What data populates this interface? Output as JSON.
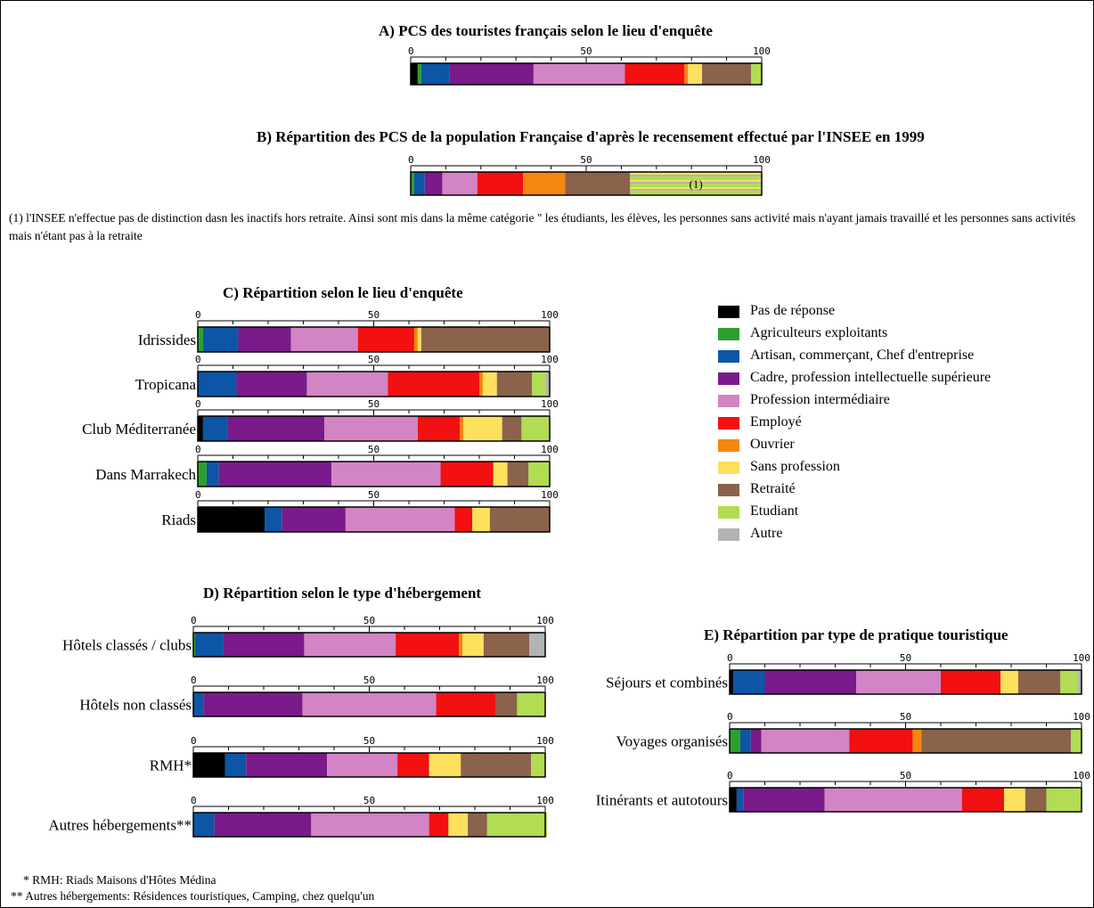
{
  "colors": {
    "pas_de_reponse": "#000000",
    "agriculteurs": "#2ca02c",
    "artisan": "#0d55a6",
    "cadre": "#7b1a8a",
    "prof_inter": "#d284c5",
    "employe": "#f21010",
    "ouvrier": "#f5860f",
    "sans_profession": "#fde05d",
    "retraite": "#8b634b",
    "etudiant": "#b1dc53",
    "autre": "#b3b3b3"
  },
  "legend": [
    {
      "key": "pas_de_reponse",
      "label": "Pas de réponse"
    },
    {
      "key": "agriculteurs",
      "label": "Agriculteurs exploitants"
    },
    {
      "key": "artisan",
      "label": "Artisan, commerçant, Chef d'entreprise"
    },
    {
      "key": "cadre",
      "label": "Cadre, profession intellectuelle supérieure"
    },
    {
      "key": "prof_inter",
      "label": "Profession intermédiaire"
    },
    {
      "key": "employe",
      "label": "Employé"
    },
    {
      "key": "ouvrier",
      "label": "Ouvrier"
    },
    {
      "key": "sans_profession",
      "label": "Sans profession"
    },
    {
      "key": "retraite",
      "label": "Retraité"
    },
    {
      "key": "etudiant",
      "label": "Etudiant"
    },
    {
      "key": "autre",
      "label": "Autre"
    }
  ],
  "note": "(1) l'INSEE n'effectue pas de distinction dasn les inactifs hors retraite. Ainsi sont mis dans la même catégorie \" les étudiants, les élèves, les personnes sans activité mais n'ayant jamais travaillé et les personnes sans activités mais n'étant pas à la retraite",
  "footnotes": [
    "* RMH: Riads Maisons d'Hôtes Médina",
    "** Autres hébergements: Résidences touristiques, Camping, chez quelqu'un"
  ],
  "chart_data": [
    {
      "id": "A",
      "type": "bar",
      "orientation": "horizontal",
      "stacked": true,
      "title": "A) PCS des touristes français selon le lieu d'enquête",
      "xlim": [
        0,
        100
      ],
      "ticks": [
        0,
        50,
        100
      ],
      "categories": [
        ""
      ],
      "series": [
        {
          "key": "pas_de_reponse",
          "values": [
            2
          ]
        },
        {
          "key": "agriculteurs",
          "values": [
            1
          ]
        },
        {
          "key": "artisan",
          "values": [
            8
          ]
        },
        {
          "key": "cadre",
          "values": [
            24
          ]
        },
        {
          "key": "prof_inter",
          "values": [
            26
          ]
        },
        {
          "key": "employe",
          "values": [
            17
          ]
        },
        {
          "key": "ouvrier",
          "values": [
            1
          ]
        },
        {
          "key": "sans_profession",
          "values": [
            4
          ]
        },
        {
          "key": "retraite",
          "values": [
            14
          ]
        },
        {
          "key": "etudiant",
          "values": [
            3
          ]
        }
      ]
    },
    {
      "id": "B",
      "type": "bar",
      "orientation": "horizontal",
      "stacked": true,
      "title": "B) Répartition des PCS de la population Française d'après le recensement effectué par l'INSEE en 1999",
      "xlim": [
        0,
        100
      ],
      "ticks": [
        0,
        50,
        100
      ],
      "categories": [
        ""
      ],
      "striped_label": "(1)",
      "series": [
        {
          "key": "agriculteurs",
          "values": [
            1
          ]
        },
        {
          "key": "artisan",
          "values": [
            3
          ]
        },
        {
          "key": "cadre",
          "values": [
            5
          ]
        },
        {
          "key": "prof_inter",
          "values": [
            10
          ]
        },
        {
          "key": "employe",
          "values": [
            13
          ]
        },
        {
          "key": "ouvrier",
          "values": [
            12
          ]
        },
        {
          "key": "retraite",
          "values": [
            18.5
          ]
        },
        {
          "key": "inactifs_hors_retraite",
          "values": [
            37.5
          ],
          "striped": true
        }
      ]
    },
    {
      "id": "C",
      "type": "bar",
      "orientation": "horizontal",
      "stacked": true,
      "title": "C) Répartition selon le lieu d'enquête",
      "xlim": [
        0,
        100
      ],
      "ticks": [
        0,
        50,
        100
      ],
      "categories": [
        "Idrissides",
        "Tropicana",
        "Club Méditerranée",
        "Dans Marrakech",
        "Riads"
      ],
      "series": [
        {
          "key": "pas_de_reponse",
          "values": [
            0,
            0,
            1.5,
            0,
            19
          ]
        },
        {
          "key": "agriculteurs",
          "values": [
            1.5,
            0,
            0,
            2.5,
            0
          ]
        },
        {
          "key": "artisan",
          "values": [
            10,
            11,
            7,
            3.5,
            5
          ]
        },
        {
          "key": "cadre",
          "values": [
            15,
            20,
            27.5,
            32,
            18
          ]
        },
        {
          "key": "prof_inter",
          "values": [
            19,
            23,
            26.5,
            31,
            31
          ]
        },
        {
          "key": "employe",
          "values": [
            16,
            26,
            12,
            15,
            5
          ]
        },
        {
          "key": "ouvrier",
          "values": [
            1,
            1,
            1,
            0,
            0
          ]
        },
        {
          "key": "sans_profession",
          "values": [
            1,
            4,
            11,
            4,
            5
          ]
        },
        {
          "key": "retraite",
          "values": [
            36.5,
            10,
            5.5,
            6,
            17
          ]
        },
        {
          "key": "etudiant",
          "values": [
            0,
            4,
            8,
            6,
            0
          ]
        },
        {
          "key": "autre",
          "values": [
            0,
            1,
            0,
            0,
            0
          ]
        }
      ]
    },
    {
      "id": "D",
      "type": "bar",
      "orientation": "horizontal",
      "stacked": true,
      "title": "D) Répartition selon le type d'hébergement",
      "xlim": [
        0,
        100
      ],
      "ticks": [
        0,
        50,
        100
      ],
      "categories": [
        "Hôtels classés / clubs",
        "Hôtels non classés",
        "RMH*",
        "Autres hébergements**"
      ],
      "series": [
        {
          "key": "pas_de_reponse",
          "values": [
            0,
            0,
            9,
            0
          ]
        },
        {
          "key": "agriculteurs",
          "values": [
            0.5,
            0,
            0,
            0
          ]
        },
        {
          "key": "artisan",
          "values": [
            8,
            3,
            6,
            6
          ]
        },
        {
          "key": "cadre",
          "values": [
            23,
            28,
            23,
            27.5
          ]
        },
        {
          "key": "prof_inter",
          "values": [
            26,
            38,
            20,
            33.5
          ]
        },
        {
          "key": "employe",
          "values": [
            18,
            17,
            9,
            5.5
          ]
        },
        {
          "key": "ouvrier",
          "values": [
            1,
            0,
            0,
            0
          ]
        },
        {
          "key": "sans_profession",
          "values": [
            6,
            0,
            9,
            5.5
          ]
        },
        {
          "key": "retraite",
          "values": [
            13,
            6,
            20,
            5.5
          ]
        },
        {
          "key": "etudiant",
          "values": [
            0,
            8,
            4,
            17
          ]
        },
        {
          "key": "autre",
          "values": [
            4.5,
            0,
            0,
            0
          ]
        }
      ]
    },
    {
      "id": "E",
      "type": "bar",
      "orientation": "horizontal",
      "stacked": true,
      "title": "E) Répartition par type de pratique touristique",
      "xlim": [
        0,
        100
      ],
      "ticks": [
        0,
        50,
        100
      ],
      "categories": [
        "Séjours et combinés",
        "Voyages organisés",
        "Itinérants et autotours"
      ],
      "series": [
        {
          "key": "pas_de_reponse",
          "values": [
            1,
            0,
            2
          ]
        },
        {
          "key": "agriculteurs",
          "values": [
            0,
            3,
            0
          ]
        },
        {
          "key": "artisan",
          "values": [
            9,
            3,
            2
          ]
        },
        {
          "key": "cadre",
          "values": [
            26,
            3,
            23
          ]
        },
        {
          "key": "prof_inter",
          "values": [
            24,
            25,
            39
          ]
        },
        {
          "key": "employe",
          "values": [
            17,
            18,
            12
          ]
        },
        {
          "key": "ouvrier",
          "values": [
            0,
            2.5,
            0
          ]
        },
        {
          "key": "sans_profession",
          "values": [
            5,
            0,
            6
          ]
        },
        {
          "key": "retraite",
          "values": [
            12,
            42.5,
            6
          ]
        },
        {
          "key": "etudiant",
          "values": [
            5,
            3,
            10
          ]
        },
        {
          "key": "autre",
          "values": [
            1,
            0,
            0
          ]
        }
      ]
    }
  ]
}
